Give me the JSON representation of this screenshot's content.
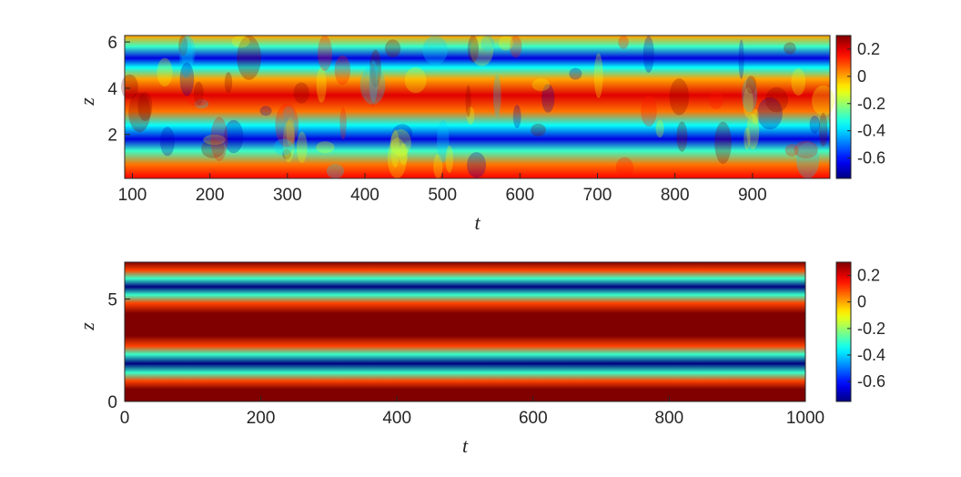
{
  "chart_data": [
    {
      "type": "heatmap",
      "xlabel": "t",
      "ylabel": "z",
      "xlim": [
        90,
        1000
      ],
      "ylim": [
        0.1,
        6.28
      ],
      "xticks": [
        100,
        200,
        300,
        400,
        500,
        600,
        700,
        800,
        900
      ],
      "xtick_labels": [
        "100",
        "200",
        "300",
        "400",
        "500",
        "600",
        "700",
        "800",
        "900"
      ],
      "yticks": [
        2,
        4,
        6
      ],
      "ytick_labels": [
        "2",
        "4",
        "6"
      ],
      "colormap": "jet",
      "clim": [
        -0.75,
        0.3
      ],
      "colorbar_ticks": [
        0.2,
        0,
        -0.2,
        -0.4,
        -0.6
      ],
      "colorbar_labels": [
        "0.2",
        "0",
        "-0.2",
        "-0.4",
        "-0.6"
      ],
      "pattern": "spatiotemporally chaotic; low bands near z=1.8 and z=5.3, high bands near z=0.3 and z=3.7, fluctuating in t",
      "bands": [
        {
          "z": 0.2,
          "value": 0.15
        },
        {
          "z": 0.7,
          "value": 0.05
        },
        {
          "z": 1.3,
          "value": -0.3
        },
        {
          "z": 1.8,
          "value": -0.65
        },
        {
          "z": 2.4,
          "value": -0.35
        },
        {
          "z": 3.0,
          "value": 0.05
        },
        {
          "z": 3.7,
          "value": 0.2
        },
        {
          "z": 4.4,
          "value": 0.0
        },
        {
          "z": 4.9,
          "value": -0.35
        },
        {
          "z": 5.3,
          "value": -0.65
        },
        {
          "z": 5.8,
          "value": -0.3
        },
        {
          "z": 6.25,
          "value": 0.0
        }
      ]
    },
    {
      "type": "heatmap",
      "xlabel": "t",
      "ylabel": "z",
      "xlim": [
        0,
        1000
      ],
      "ylim": [
        0,
        6.8
      ],
      "xticks": [
        0,
        200,
        400,
        600,
        800,
        1000
      ],
      "xtick_labels": [
        "0",
        "200",
        "400",
        "600",
        "800",
        "1000"
      ],
      "yticks": [
        0,
        5
      ],
      "ytick_labels": [
        "0",
        "5"
      ],
      "colormap": "jet",
      "clim": [
        -0.75,
        0.3
      ],
      "colorbar_ticks": [
        0.2,
        0,
        -0.2,
        -0.4,
        -0.6
      ],
      "colorbar_labels": [
        "0.2",
        "0",
        "-0.2",
        "-0.4",
        "-0.6"
      ],
      "pattern": "steady state, constant in t",
      "bands": [
        {
          "z": 0.0,
          "value": 0.3
        },
        {
          "z": 0.6,
          "value": 0.3
        },
        {
          "z": 1.0,
          "value": 0.1
        },
        {
          "z": 1.4,
          "value": -0.3
        },
        {
          "z": 1.85,
          "value": -0.75
        },
        {
          "z": 2.3,
          "value": -0.3
        },
        {
          "z": 2.7,
          "value": 0.1
        },
        {
          "z": 3.2,
          "value": 0.3
        },
        {
          "z": 4.3,
          "value": 0.3
        },
        {
          "z": 4.8,
          "value": 0.1
        },
        {
          "z": 5.2,
          "value": -0.3
        },
        {
          "z": 5.6,
          "value": -0.75
        },
        {
          "z": 6.0,
          "value": -0.3
        },
        {
          "z": 6.4,
          "value": 0.1
        },
        {
          "z": 6.8,
          "value": 0.3
        }
      ]
    }
  ]
}
